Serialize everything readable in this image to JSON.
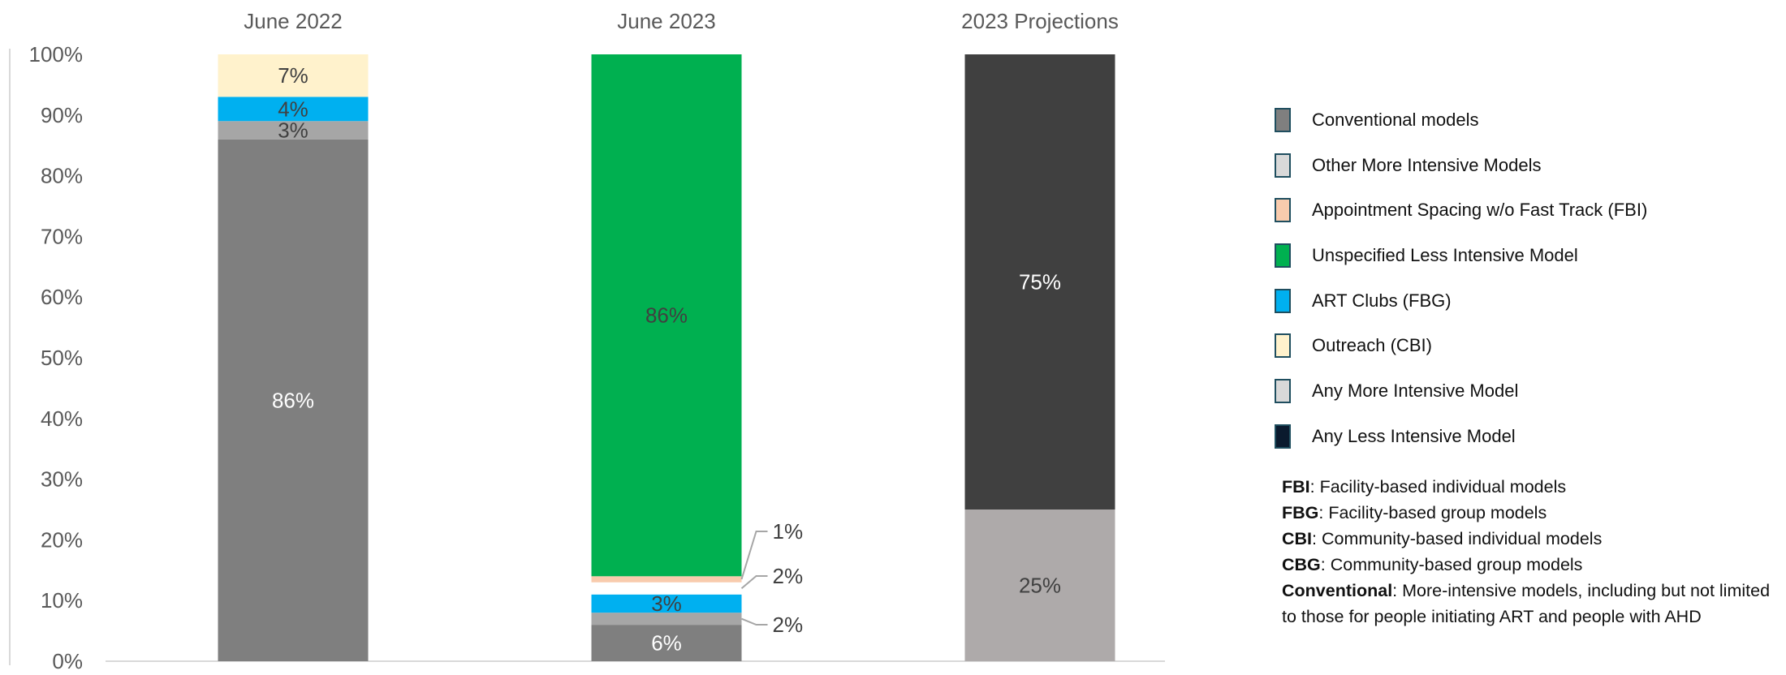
{
  "chart_data": {
    "type": "bar",
    "stacked": true,
    "categories": [
      "June 2022",
      "June 2023",
      "2023 Projections"
    ],
    "y_axis": {
      "ylim": [
        0,
        100
      ],
      "ticks": [
        "0%",
        "10%",
        "20%",
        "30%",
        "40%",
        "50%",
        "60%",
        "70%",
        "80%",
        "90%",
        "100%"
      ]
    },
    "grid": false,
    "legend_position": "right",
    "stacks": [
      {
        "category": "June 2022",
        "segments": [
          {
            "series": "Conventional models",
            "value": 86,
            "label": "86%",
            "color": "#7f7f7f",
            "label_color": "#ffffff"
          },
          {
            "series": "Other More Intensive Models",
            "value": 3,
            "label": "3%",
            "color": "#a6a6a6",
            "label_color": "#404040"
          },
          {
            "series": "ART Clubs (FBG)",
            "value": 4,
            "label": "4%",
            "color": "#00b0f0",
            "label_color": "#404040"
          },
          {
            "series": "Outreach (CBI)",
            "value": 7,
            "label": "7%",
            "color": "#fff2cc",
            "label_color": "#404040"
          }
        ]
      },
      {
        "category": "June 2023",
        "segments": [
          {
            "series": "Conventional models",
            "value": 6,
            "label": "6%",
            "color": "#7f7f7f",
            "label_color": "#ffffff"
          },
          {
            "series": "Other More Intensive Models",
            "value": 2,
            "label": "2%",
            "color": "#a6a6a6",
            "label_color": "#404040",
            "callout": true
          },
          {
            "series": "ART Clubs (FBG)",
            "value": 3,
            "label": "3%",
            "color": "#00b0f0",
            "label_color": "#404040"
          },
          {
            "series": "Outreach (CBI)",
            "value": 2,
            "label": "2%",
            "color": "#ffffff",
            "label_color": "#404040",
            "callout": true
          },
          {
            "series": "Appointment Spacing w/o Fast Track (FBI)",
            "value": 1,
            "label": "1%",
            "color": "#f8cbad",
            "label_color": "#404040",
            "callout": true
          },
          {
            "series": "Unspecified Less Intensive Model",
            "value": 86,
            "label": "86%",
            "color": "#00b050",
            "label_color": "#404040"
          }
        ]
      },
      {
        "category": "2023 Projections",
        "segments": [
          {
            "series": "Any More Intensive Model",
            "value": 25,
            "label": "25%",
            "color": "#aeaaaa",
            "label_color": "#404040"
          },
          {
            "series": "Any Less Intensive Model",
            "value": 75,
            "label": "75%",
            "color": "#404040",
            "label_color": "#ffffff"
          }
        ]
      }
    ]
  },
  "legend": {
    "items": [
      {
        "label": "Conventional models",
        "color": "#7f7f7f"
      },
      {
        "label": "Other More Intensive Models",
        "color": "#d9d9d9"
      },
      {
        "label": "Appointment Spacing w/o Fast Track (FBI)",
        "color": "#f8cbad"
      },
      {
        "label": "Unspecified Less Intensive Model",
        "color": "#00b050"
      },
      {
        "label": "ART Clubs (FBG)",
        "color": "#00b0f0"
      },
      {
        "label": "Outreach (CBI)",
        "color": "#fff2cc"
      },
      {
        "label": "Any More Intensive Model",
        "color": "#d9d9d9"
      },
      {
        "label": "Any Less Intensive Model",
        "color": "#0a1a2e"
      }
    ]
  },
  "notes": [
    {
      "term": "FBI",
      "text": ": Facility-based individual models"
    },
    {
      "term": "FBG",
      "text": ": Facility-based group models"
    },
    {
      "term": "CBI",
      "text": ": Community-based individual models"
    },
    {
      "term": "CBG",
      "text": ": Community-based group models"
    },
    {
      "term": "Conventional",
      "text": ": More-intensive models, including but not limited to those for people initiating ART and people with AHD"
    }
  ]
}
